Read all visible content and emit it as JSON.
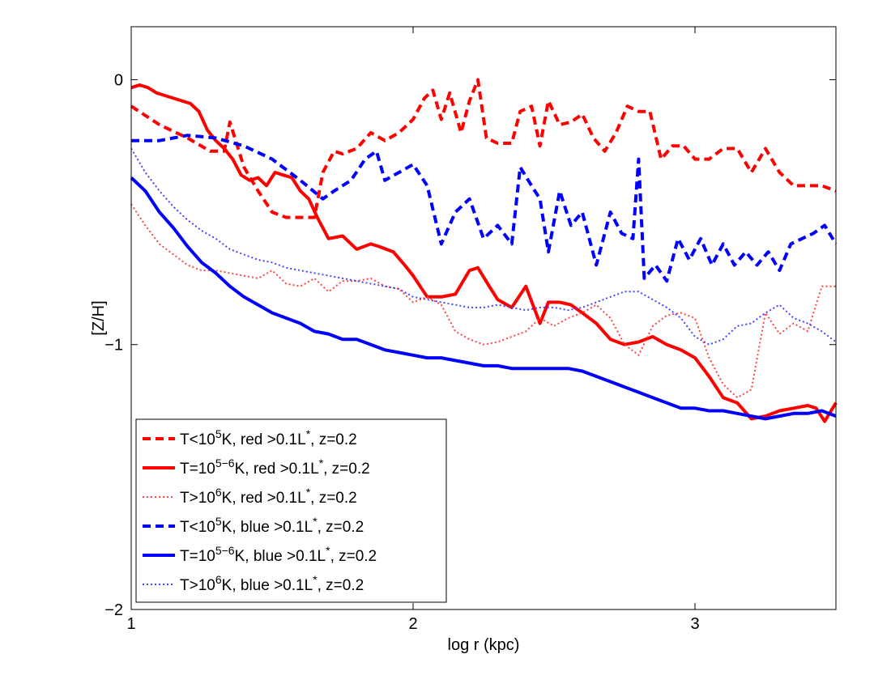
{
  "chart_data": {
    "type": "line",
    "title": "",
    "xlabel": "log r (kpc)",
    "ylabel": "[Z/H]",
    "xlim": [
      1,
      3.5
    ],
    "ylim": [
      -2,
      0.2
    ],
    "xticks": [
      1,
      2,
      3
    ],
    "yticks": [
      -2,
      -1,
      0
    ],
    "xtick_labels": [
      "1",
      "2",
      "3"
    ],
    "ytick_labels": [
      "−2",
      "−1",
      "0"
    ],
    "grid": false,
    "legend_position": "bottom-left",
    "series": [
      {
        "name": "T<10^5K, red >0.1L*, z=0.2",
        "label_parts": [
          "T<10",
          "5",
          "K, red >0.1L",
          "*",
          ", z=0.2"
        ],
        "color": "#ff0000",
        "style": "dashed",
        "x": [
          1.0,
          1.1,
          1.2,
          1.28,
          1.33,
          1.35,
          1.4,
          1.45,
          1.5,
          1.55,
          1.6,
          1.65,
          1.68,
          1.72,
          1.75,
          1.8,
          1.85,
          1.9,
          1.95,
          2.0,
          2.04,
          2.07,
          2.1,
          2.13,
          2.17,
          2.2,
          2.23,
          2.26,
          2.3,
          2.35,
          2.38,
          2.42,
          2.45,
          2.48,
          2.52,
          2.56,
          2.6,
          2.64,
          2.68,
          2.72,
          2.76,
          2.8,
          2.84,
          2.88,
          2.92,
          2.96,
          3.0,
          3.05,
          3.1,
          3.15,
          3.2,
          3.25,
          3.3,
          3.35,
          3.4,
          3.45,
          3.5
        ],
        "y": [
          -0.1,
          -0.17,
          -0.22,
          -0.27,
          -0.27,
          -0.16,
          -0.33,
          -0.42,
          -0.5,
          -0.52,
          -0.52,
          -0.52,
          -0.35,
          -0.27,
          -0.28,
          -0.26,
          -0.2,
          -0.23,
          -0.2,
          -0.15,
          -0.07,
          -0.04,
          -0.15,
          -0.05,
          -0.2,
          -0.08,
          0.0,
          -0.22,
          -0.24,
          -0.24,
          -0.12,
          -0.1,
          -0.25,
          -0.08,
          -0.17,
          -0.16,
          -0.13,
          -0.22,
          -0.27,
          -0.2,
          -0.1,
          -0.12,
          -0.12,
          -0.3,
          -0.25,
          -0.25,
          -0.3,
          -0.3,
          -0.26,
          -0.26,
          -0.35,
          -0.26,
          -0.35,
          -0.4,
          -0.4,
          -0.4,
          -0.42
        ]
      },
      {
        "name": "T=10^(5-6)K, red >0.1L*, z=0.2",
        "label_parts": [
          "T=10",
          "5−6",
          "K, red >0.1L",
          "*",
          ", z=0.2"
        ],
        "color": "#ff0000",
        "style": "solid",
        "x": [
          1.0,
          1.03,
          1.06,
          1.09,
          1.12,
          1.15,
          1.18,
          1.21,
          1.24,
          1.27,
          1.3,
          1.33,
          1.36,
          1.39,
          1.42,
          1.45,
          1.48,
          1.51,
          1.54,
          1.57,
          1.6,
          1.63,
          1.66,
          1.7,
          1.75,
          1.8,
          1.85,
          1.88,
          1.93,
          1.97,
          2.0,
          2.05,
          2.1,
          2.15,
          2.2,
          2.23,
          2.27,
          2.3,
          2.35,
          2.4,
          2.45,
          2.48,
          2.52,
          2.56,
          2.6,
          2.65,
          2.7,
          2.75,
          2.8,
          2.85,
          2.9,
          2.95,
          3.0,
          3.05,
          3.1,
          3.15,
          3.2,
          3.25,
          3.3,
          3.35,
          3.4,
          3.43,
          3.46,
          3.5
        ],
        "y": [
          -0.03,
          -0.02,
          -0.03,
          -0.05,
          -0.06,
          -0.07,
          -0.08,
          -0.09,
          -0.12,
          -0.19,
          -0.23,
          -0.26,
          -0.3,
          -0.36,
          -0.38,
          -0.37,
          -0.4,
          -0.35,
          -0.36,
          -0.37,
          -0.42,
          -0.45,
          -0.52,
          -0.6,
          -0.59,
          -0.64,
          -0.62,
          -0.63,
          -0.65,
          -0.7,
          -0.74,
          -0.82,
          -0.82,
          -0.81,
          -0.72,
          -0.71,
          -0.78,
          -0.83,
          -0.86,
          -0.78,
          -0.92,
          -0.84,
          -0.84,
          -0.85,
          -0.88,
          -0.92,
          -0.98,
          -1.0,
          -0.99,
          -0.97,
          -1.0,
          -1.02,
          -1.05,
          -1.12,
          -1.2,
          -1.22,
          -1.28,
          -1.27,
          -1.25,
          -1.24,
          -1.23,
          -1.24,
          -1.29,
          -1.22
        ]
      },
      {
        "name": "T>10^6K, red >0.1L*, z=0.2",
        "label_parts": [
          "T>10",
          "6",
          "K, red >0.1L",
          "*",
          ", z=0.2"
        ],
        "color": "#ff4444",
        "style": "dotted",
        "x": [
          1.0,
          1.05,
          1.1,
          1.15,
          1.2,
          1.25,
          1.3,
          1.35,
          1.4,
          1.45,
          1.5,
          1.55,
          1.6,
          1.65,
          1.7,
          1.75,
          1.8,
          1.85,
          1.9,
          1.95,
          2.0,
          2.05,
          2.1,
          2.15,
          2.2,
          2.25,
          2.3,
          2.35,
          2.4,
          2.45,
          2.5,
          2.55,
          2.6,
          2.65,
          2.7,
          2.75,
          2.8,
          2.85,
          2.9,
          2.95,
          3.0,
          3.05,
          3.1,
          3.15,
          3.2,
          3.25,
          3.3,
          3.35,
          3.4,
          3.45,
          3.5
        ],
        "y": [
          -0.47,
          -0.55,
          -0.62,
          -0.66,
          -0.7,
          -0.72,
          -0.72,
          -0.73,
          -0.74,
          -0.75,
          -0.72,
          -0.77,
          -0.78,
          -0.75,
          -0.8,
          -0.76,
          -0.76,
          -0.75,
          -0.78,
          -0.79,
          -0.84,
          -0.82,
          -0.85,
          -0.95,
          -0.98,
          -1.0,
          -0.99,
          -0.97,
          -0.95,
          -0.9,
          -0.93,
          -0.9,
          -0.88,
          -0.85,
          -0.9,
          -1.0,
          -1.04,
          -0.93,
          -0.89,
          -0.88,
          -0.9,
          -1.05,
          -1.15,
          -1.2,
          -1.17,
          -0.88,
          -0.96,
          -0.92,
          -0.95,
          -0.78,
          -0.78
        ]
      },
      {
        "name": "T<10^5K, blue >0.1L*, z=0.2",
        "label_parts": [
          "T<10",
          "5",
          "K, blue >0.1L",
          "*",
          ", z=0.2"
        ],
        "color": "#0000ff",
        "style": "dashed",
        "x": [
          1.0,
          1.1,
          1.2,
          1.3,
          1.4,
          1.5,
          1.6,
          1.68,
          1.72,
          1.78,
          1.83,
          1.87,
          1.9,
          1.95,
          2.0,
          2.05,
          2.1,
          2.15,
          2.2,
          2.25,
          2.3,
          2.35,
          2.38,
          2.42,
          2.45,
          2.48,
          2.52,
          2.56,
          2.6,
          2.65,
          2.7,
          2.74,
          2.78,
          2.8,
          2.82,
          2.86,
          2.9,
          2.94,
          2.98,
          3.02,
          3.06,
          3.1,
          3.14,
          3.18,
          3.22,
          3.26,
          3.3,
          3.34,
          3.38,
          3.42,
          3.46,
          3.5
        ],
        "y": [
          -0.23,
          -0.23,
          -0.21,
          -0.22,
          -0.25,
          -0.3,
          -0.38,
          -0.45,
          -0.42,
          -0.38,
          -0.3,
          -0.27,
          -0.38,
          -0.35,
          -0.32,
          -0.4,
          -0.62,
          -0.5,
          -0.45,
          -0.6,
          -0.55,
          -0.62,
          -0.33,
          -0.4,
          -0.45,
          -0.65,
          -0.42,
          -0.55,
          -0.5,
          -0.7,
          -0.5,
          -0.58,
          -0.6,
          -0.3,
          -0.75,
          -0.7,
          -0.76,
          -0.6,
          -0.68,
          -0.6,
          -0.7,
          -0.62,
          -0.7,
          -0.65,
          -0.7,
          -0.65,
          -0.72,
          -0.62,
          -0.6,
          -0.58,
          -0.55,
          -0.62
        ]
      },
      {
        "name": "T=10^(5-6)K, blue >0.1L*, z=0.2",
        "label_parts": [
          "T=10",
          "5−6",
          "K, blue >0.1L",
          "*",
          ", z=0.2"
        ],
        "color": "#0000ff",
        "style": "solid",
        "x": [
          1.0,
          1.05,
          1.1,
          1.15,
          1.2,
          1.25,
          1.3,
          1.35,
          1.4,
          1.45,
          1.5,
          1.55,
          1.6,
          1.65,
          1.7,
          1.75,
          1.8,
          1.85,
          1.9,
          1.95,
          2.0,
          2.05,
          2.1,
          2.15,
          2.2,
          2.25,
          2.3,
          2.35,
          2.4,
          2.45,
          2.5,
          2.55,
          2.6,
          2.65,
          2.7,
          2.75,
          2.8,
          2.85,
          2.9,
          2.95,
          3.0,
          3.05,
          3.1,
          3.15,
          3.2,
          3.25,
          3.3,
          3.35,
          3.4,
          3.45,
          3.5
        ],
        "y": [
          -0.37,
          -0.42,
          -0.5,
          -0.56,
          -0.63,
          -0.69,
          -0.73,
          -0.78,
          -0.82,
          -0.85,
          -0.88,
          -0.9,
          -0.92,
          -0.95,
          -0.96,
          -0.98,
          -0.98,
          -1.0,
          -1.02,
          -1.03,
          -1.04,
          -1.05,
          -1.05,
          -1.06,
          -1.07,
          -1.08,
          -1.08,
          -1.09,
          -1.09,
          -1.09,
          -1.09,
          -1.09,
          -1.1,
          -1.12,
          -1.14,
          -1.16,
          -1.18,
          -1.2,
          -1.22,
          -1.24,
          -1.24,
          -1.25,
          -1.25,
          -1.26,
          -1.27,
          -1.28,
          -1.27,
          -1.26,
          -1.26,
          -1.25,
          -1.27
        ]
      },
      {
        "name": "T>10^6K, blue >0.1L*, z=0.2",
        "label_parts": [
          "T>10",
          "6",
          "K, blue >0.1L",
          "*",
          ", z=0.2"
        ],
        "color": "#4444ff",
        "style": "dotted",
        "x": [
          1.0,
          1.05,
          1.1,
          1.15,
          1.2,
          1.25,
          1.3,
          1.35,
          1.4,
          1.45,
          1.5,
          1.55,
          1.6,
          1.65,
          1.7,
          1.75,
          1.8,
          1.85,
          1.9,
          1.95,
          2.0,
          2.05,
          2.1,
          2.15,
          2.2,
          2.25,
          2.3,
          2.35,
          2.4,
          2.45,
          2.5,
          2.55,
          2.6,
          2.65,
          2.7,
          2.75,
          2.8,
          2.85,
          2.9,
          2.95,
          3.0,
          3.05,
          3.1,
          3.15,
          3.2,
          3.25,
          3.3,
          3.35,
          3.4,
          3.45,
          3.5
        ],
        "y": [
          -0.26,
          -0.35,
          -0.42,
          -0.48,
          -0.53,
          -0.57,
          -0.6,
          -0.64,
          -0.66,
          -0.68,
          -0.69,
          -0.71,
          -0.72,
          -0.73,
          -0.74,
          -0.75,
          -0.76,
          -0.77,
          -0.78,
          -0.79,
          -0.82,
          -0.83,
          -0.84,
          -0.85,
          -0.86,
          -0.86,
          -0.85,
          -0.86,
          -0.87,
          -0.86,
          -0.86,
          -0.87,
          -0.86,
          -0.84,
          -0.82,
          -0.8,
          -0.8,
          -0.83,
          -0.86,
          -0.9,
          -0.97,
          -1.0,
          -0.98,
          -0.93,
          -0.92,
          -0.88,
          -0.85,
          -0.9,
          -0.92,
          -0.95,
          -0.99
        ]
      }
    ]
  }
}
